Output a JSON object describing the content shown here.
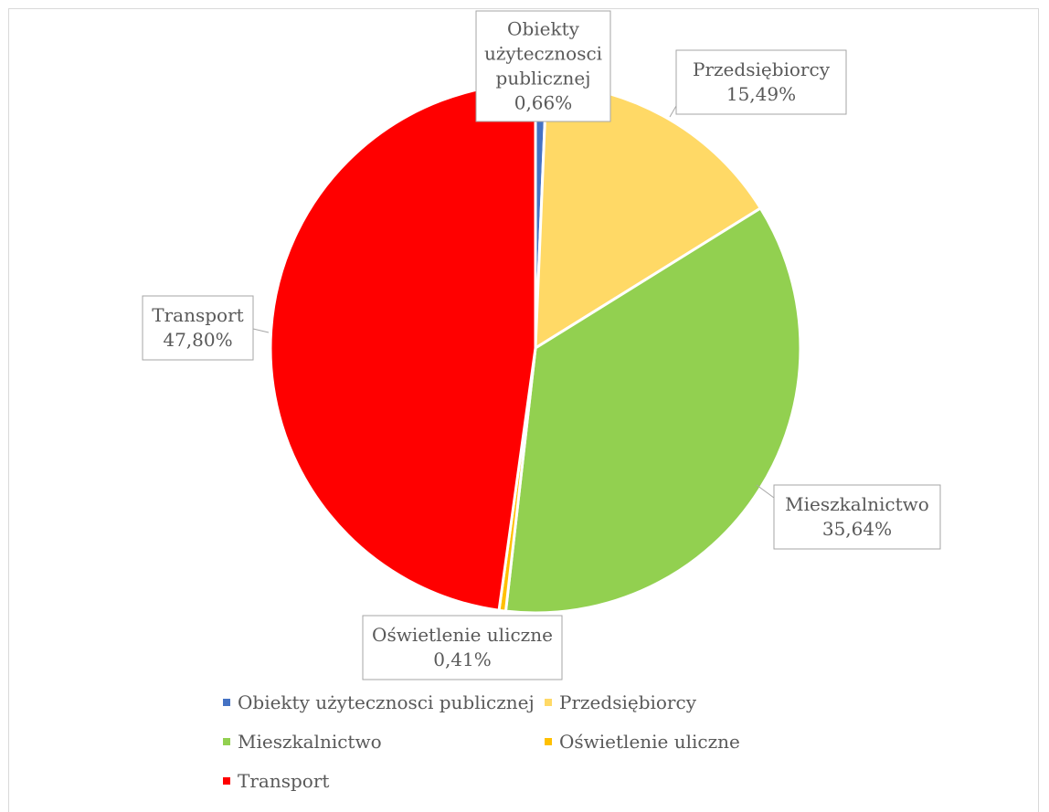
{
  "chart_data": {
    "type": "pie",
    "categories": [
      "Obiekty użytecznosci publicznej",
      "Przedsiębiorcy",
      "Mieszkalnictwo",
      "Oświetlenie uliczne",
      "Transport"
    ],
    "values": [
      0.66,
      15.49,
      35.64,
      0.41,
      47.8
    ],
    "colors": [
      "#4472c4",
      "#ffd966",
      "#92d050",
      "#ffc000",
      "#ff0000"
    ],
    "data_labels": [
      {
        "lines": [
          "Obiekty",
          "użytecznosci",
          "publicznej",
          "0,66%"
        ]
      },
      {
        "lines": [
          "Przedsiębiorcy",
          "15,49%"
        ]
      },
      {
        "lines": [
          "Mieszkalnictwo",
          "35,64%"
        ]
      },
      {
        "lines": [
          "Oświetlenie uliczne",
          "0,41%"
        ]
      },
      {
        "lines": [
          "Transport",
          "47,80%"
        ]
      }
    ],
    "legend": {
      "position": "bottom",
      "items": [
        {
          "label": "Obiekty użytecznosci publicznej",
          "color": "#4472c4"
        },
        {
          "label": "Przedsiębiorcy",
          "color": "#ffd966"
        },
        {
          "label": "Mieszkalnictwo",
          "color": "#92d050"
        },
        {
          "label": "Oświetlenie uliczne",
          "color": "#ffc000"
        },
        {
          "label": "Transport",
          "color": "#ff0000"
        }
      ]
    }
  }
}
